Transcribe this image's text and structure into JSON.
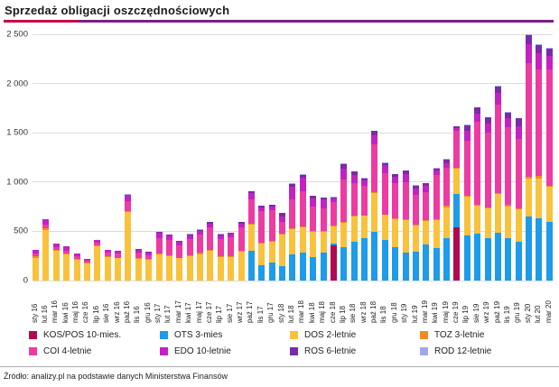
{
  "title": "Sprzedaż obligacji oszczędnościowych",
  "title_rule": {
    "left_color": "#c4004b",
    "right_color": "#7b1f82",
    "split_pct": 13.5
  },
  "footer": {
    "source": "Źródło: analizy.pl na podstawie danych Ministerstwa Finansów"
  },
  "legend": [
    {
      "label": "KOS/POS 10-mies.",
      "color": "#b00a50"
    },
    {
      "label": "OTS 3-mies",
      "color": "#1e9be9"
    },
    {
      "label": "DOS 2-letnie",
      "color": "#f9c23c"
    },
    {
      "label": "TOZ 3-letnie",
      "color": "#f28b24"
    },
    {
      "label": "COI 4-letnie",
      "color": "#ed3ba2"
    },
    {
      "label": "EDO 10-letnie",
      "color": "#c322c3"
    },
    {
      "label": "ROS 6-letnie",
      "color": "#7a2ba8"
    },
    {
      "label": "ROD 12-letnie",
      "color": "#9fa8ec"
    }
  ],
  "chart_data": {
    "type": "bar",
    "stacked": true,
    "title": "Sprzedaż obligacji oszczędnościowych",
    "xlabel": "",
    "ylabel": "",
    "ylim": [
      0,
      2500
    ],
    "ytick_values": [
      0,
      500,
      1000,
      1500,
      2000,
      2500
    ],
    "ytick_labels": [
      "0",
      "500",
      "1 000",
      "1 500",
      "2 000",
      "2 500"
    ],
    "grid": true,
    "legend_position": "bottom",
    "categories": [
      "sty 16",
      "lut 16",
      "mar 16",
      "kwi 16",
      "maj 16",
      "cze 16",
      "lip 16",
      "sie 16",
      "wrz 16",
      "paź 16",
      "lis 16",
      "gru 16",
      "sty 17",
      "lut 17",
      "mar 17",
      "kwi 17",
      "maj 17",
      "cze 17",
      "lip 17",
      "sie 17",
      "wrz 17",
      "paź 17",
      "lis 17",
      "gru 17",
      "sty 18",
      "lut 18",
      "mar 18",
      "kwi 18",
      "maj 18",
      "cze 18",
      "lip 18",
      "sie 18",
      "wrz 18",
      "paź 18",
      "lis 18",
      "gru 18",
      "sty 19",
      "lut 19",
      "mar 19",
      "kwi 19",
      "maj 19",
      "cze 19",
      "lip 19",
      "sie 19",
      "wrz 19",
      "paź 19",
      "lis 19",
      "gru 19",
      "sty 20",
      "lut 20",
      "mar 20"
    ],
    "series": [
      {
        "name": "KOS/POS 10-mies.",
        "color": "#b00a50",
        "values": [
          0,
          0,
          0,
          0,
          0,
          0,
          0,
          0,
          0,
          0,
          0,
          0,
          0,
          0,
          0,
          0,
          0,
          0,
          0,
          0,
          0,
          0,
          0,
          0,
          0,
          0,
          0,
          0,
          0,
          355,
          0,
          0,
          0,
          0,
          0,
          0,
          0,
          0,
          0,
          0,
          0,
          540,
          0,
          0,
          0,
          0,
          0,
          0,
          0,
          0,
          0
        ]
      },
      {
        "name": "OTS 3-mies",
        "color": "#1e9be9",
        "values": [
          0,
          0,
          0,
          0,
          0,
          0,
          0,
          0,
          0,
          0,
          0,
          0,
          0,
          0,
          0,
          0,
          0,
          0,
          0,
          0,
          0,
          305,
          160,
          185,
          145,
          265,
          280,
          235,
          280,
          25,
          335,
          390,
          435,
          495,
          410,
          343,
          287,
          297,
          367,
          327,
          428,
          335,
          460,
          480,
          430,
          490,
          435,
          390,
          654,
          633,
          596
        ]
      },
      {
        "name": "DOS 2-letnie",
        "color": "#f9c23c",
        "values": [
          230,
          510,
          300,
          265,
          215,
          175,
          350,
          240,
          225,
          695,
          220,
          210,
          265,
          245,
          225,
          245,
          270,
          300,
          235,
          240,
          290,
          260,
          220,
          210,
          320,
          260,
          260,
          260,
          215,
          170,
          255,
          260,
          220,
          390,
          255,
          280,
          330,
          260,
          235,
          284,
          318,
          265,
          390,
          281,
          300,
          385,
          320,
          335,
          382,
          398,
          358
        ]
      },
      {
        "name": "TOZ 3-letnie",
        "color": "#f28b24",
        "values": [
          15,
          20,
          10,
          10,
          8,
          5,
          8,
          8,
          8,
          10,
          8,
          6,
          12,
          10,
          8,
          8,
          10,
          10,
          8,
          8,
          10,
          10,
          8,
          8,
          10,
          10,
          12,
          10,
          8,
          8,
          10,
          8,
          8,
          10,
          8,
          8,
          10,
          8,
          8,
          10,
          15,
          8,
          12,
          10,
          10,
          12,
          10,
          10,
          15,
          30,
          12
        ]
      },
      {
        "name": "COI 4-letnie",
        "color": "#ed3ba2",
        "values": [
          30,
          35,
          25,
          30,
          25,
          20,
          25,
          35,
          40,
          105,
          55,
          45,
          150,
          155,
          125,
          165,
          185,
          230,
          180,
          190,
          245,
          250,
          320,
          310,
          125,
          290,
          355,
          245,
          230,
          235,
          430,
          335,
          300,
          490,
          420,
          355,
          373,
          306,
          290,
          450,
          388,
          375,
          555,
          844,
          760,
          900,
          790,
          705,
          1156,
          1086,
          1177
        ]
      },
      {
        "name": "EDO 10-letnie",
        "color": "#c322c3",
        "values": [
          40,
          60,
          38,
          40,
          27,
          20,
          25,
          30,
          33,
          58,
          30,
          25,
          55,
          48,
          35,
          40,
          40,
          40,
          35,
          35,
          35,
          60,
          35,
          35,
          55,
          130,
          135,
          85,
          87,
          40,
          110,
          80,
          50,
          90,
          75,
          70,
          80,
          68,
          60,
          45,
          45,
          25,
          105,
          75,
          95,
          115,
          90,
          125,
          190,
          160,
          140
        ]
      },
      {
        "name": "ROS 6-letnie",
        "color": "#7a2ba8",
        "values": [
          0,
          0,
          0,
          0,
          0,
          0,
          0,
          0,
          0,
          7,
          5,
          3,
          10,
          12,
          12,
          13,
          12,
          13,
          13,
          13,
          13,
          18,
          18,
          18,
          30,
          30,
          33,
          25,
          20,
          14,
          40,
          32,
          22,
          45,
          27,
          24,
          35,
          26,
          25,
          24,
          35,
          17,
          55,
          65,
          60,
          65,
          60,
          80,
          98,
          81,
          72
        ]
      },
      {
        "name": "ROD 12-letnie",
        "color": "#9fa8ec",
        "values": [
          0,
          0,
          0,
          0,
          0,
          0,
          0,
          0,
          0,
          3,
          2,
          1,
          3,
          2,
          2,
          3,
          3,
          3,
          3,
          3,
          3,
          5,
          3,
          4,
          5,
          5,
          5,
          5,
          5,
          3,
          10,
          5,
          5,
          5,
          5,
          5,
          5,
          5,
          5,
          5,
          6,
          5,
          8,
          5,
          5,
          8,
          5,
          5,
          10,
          12,
          5
        ]
      }
    ]
  }
}
